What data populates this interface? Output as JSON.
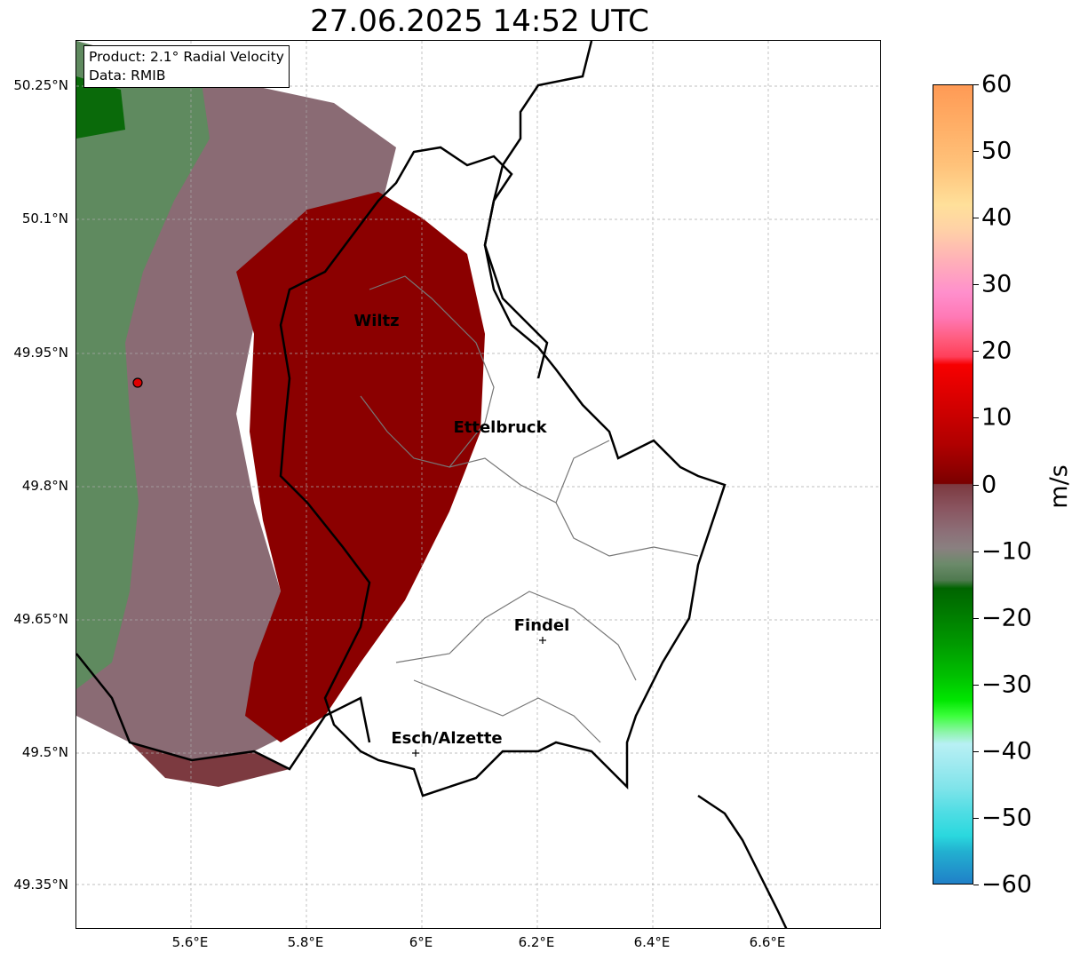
{
  "title": "27.06.2025 14:52 UTC",
  "info": {
    "product": "Product: 2.1° Radial Velocity",
    "source": "Data: RMIB"
  },
  "lat_labels": [
    "50.25°N",
    "50.1°N",
    "49.95°N",
    "49.8°N",
    "49.65°N",
    "49.5°N",
    "49.35°N"
  ],
  "lon_labels": [
    "5.6°E",
    "5.8°E",
    "6°E",
    "6.2°E",
    "6.4°E",
    "6.6°E"
  ],
  "cities": [
    {
      "name": "Wiltz"
    },
    {
      "name": "Ettelbruck"
    },
    {
      "name": "Findel"
    },
    {
      "name": "Esch/Alzette"
    }
  ],
  "colorbar": {
    "unit": "m/s",
    "ticks": [
      "60",
      "50",
      "40",
      "30",
      "20",
      "10",
      "0",
      "−10",
      "−20",
      "−30",
      "−40",
      "−50",
      "−60"
    ],
    "range": [
      -60,
      60
    ]
  },
  "colors": {
    "approaching_dark_red": "#8b0000",
    "neutral_grey_pink": "#8a6b74",
    "receding_green": "#5f8a5f",
    "radar_site": "#e00000"
  }
}
